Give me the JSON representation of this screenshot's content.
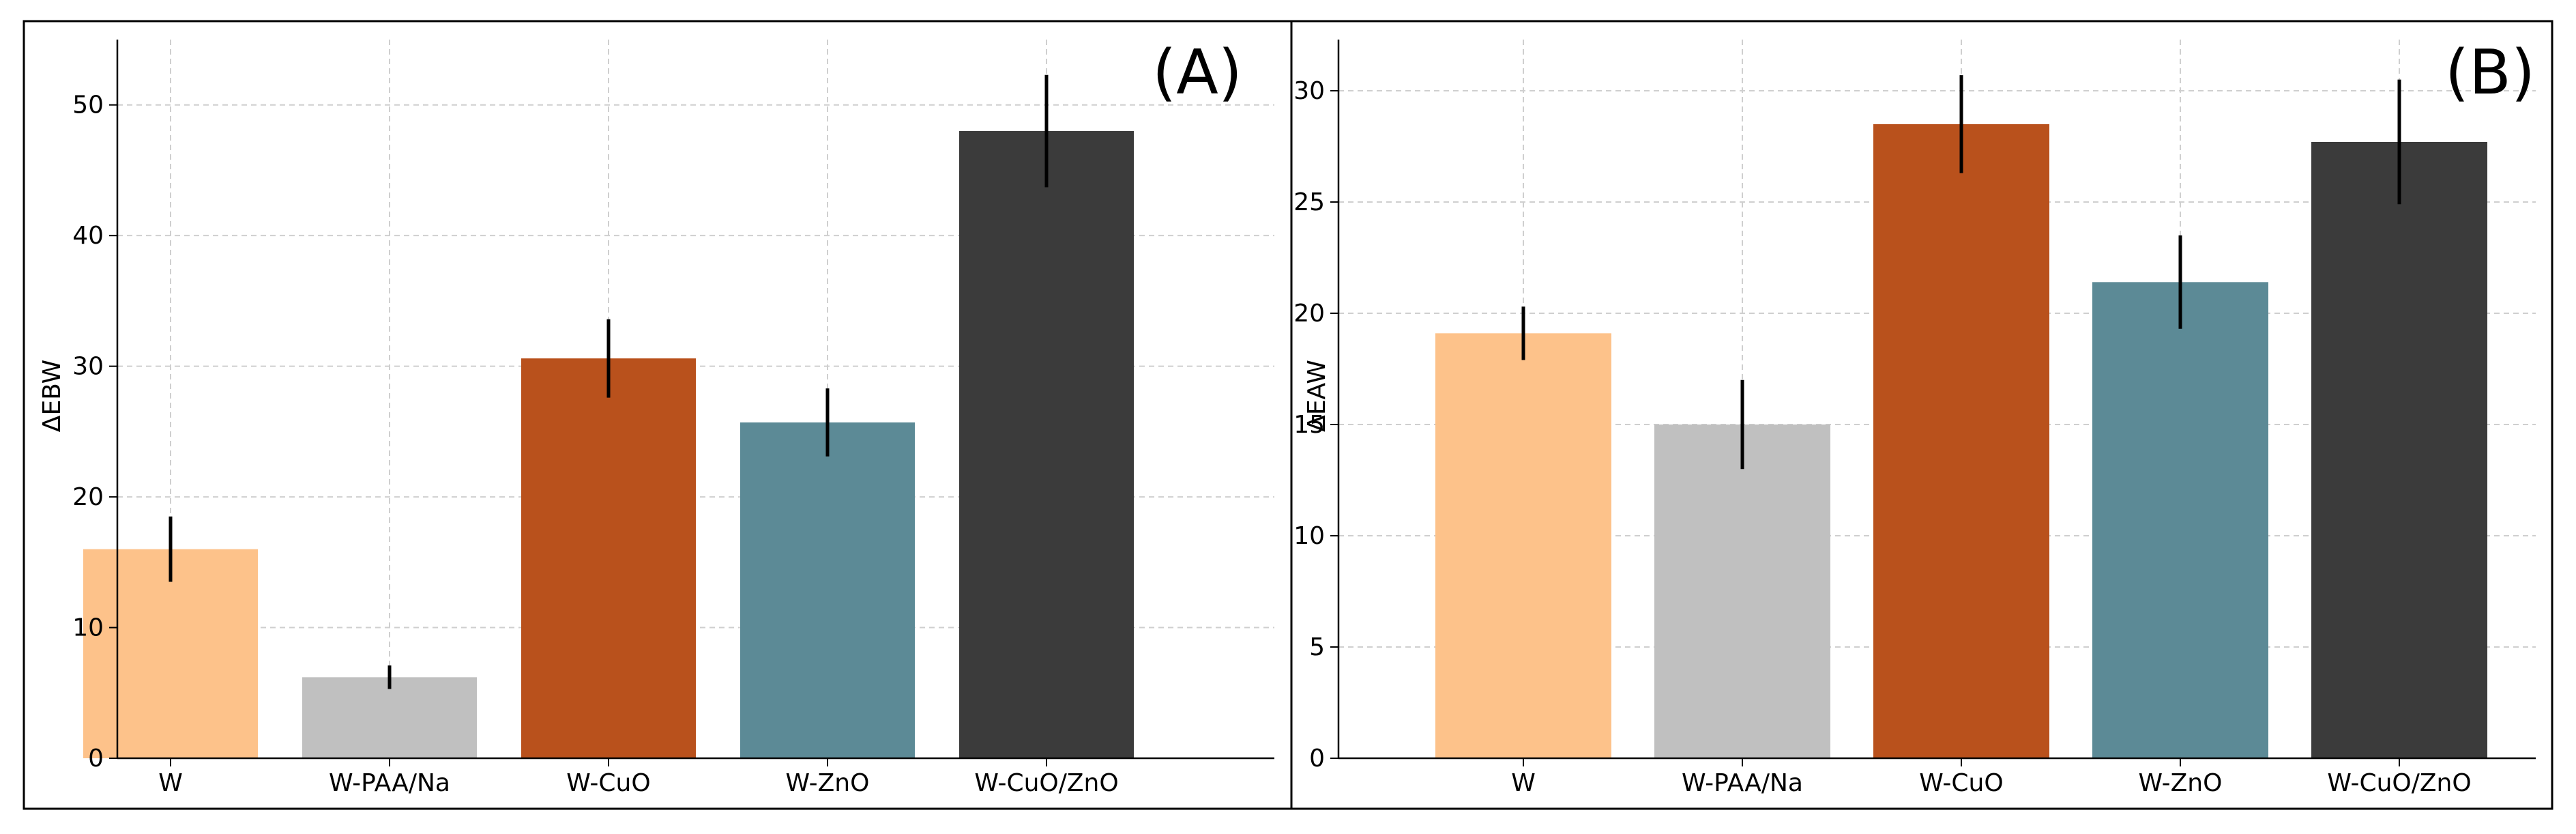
{
  "figure": {
    "background": "#ffffff",
    "frame_color": "#000000"
  },
  "chart_data": [
    {
      "type": "bar",
      "panel_label": "(A)",
      "title": "",
      "xlabel": "",
      "ylabel": "ΔEBW",
      "ylim": [
        0,
        55
      ],
      "yticks": [
        0,
        10,
        20,
        30,
        40,
        50
      ],
      "grid": true,
      "categories": [
        "W",
        "W-PAA/Na",
        "W-CuO",
        "W-ZnO",
        "W-CuO/ZnO"
      ],
      "values": [
        16.0,
        6.2,
        30.6,
        25.7,
        48.0
      ],
      "errors": [
        2.5,
        0.9,
        3.0,
        2.6,
        4.3
      ],
      "colors": [
        "#fdc28a",
        "#c0c0c0",
        "#b9511c",
        "#5c8a96",
        "#3b3b3b"
      ]
    },
    {
      "type": "bar",
      "panel_label": "(B)",
      "title": "",
      "xlabel": "",
      "ylabel": "ΔEAW",
      "ylim": [
        0,
        32.3
      ],
      "yticks": [
        0,
        5,
        10,
        15,
        20,
        25,
        30
      ],
      "grid": true,
      "categories": [
        "W",
        "W-PAA/Na",
        "W-CuO",
        "W-ZnO",
        "W-CuO/ZnO"
      ],
      "values": [
        19.1,
        15.0,
        28.5,
        21.4,
        27.7
      ],
      "errors": [
        1.2,
        2.0,
        2.2,
        2.1,
        2.8
      ],
      "colors": [
        "#fdc28a",
        "#c0c0c0",
        "#b9511c",
        "#5c8a96",
        "#3b3b3b"
      ]
    }
  ]
}
